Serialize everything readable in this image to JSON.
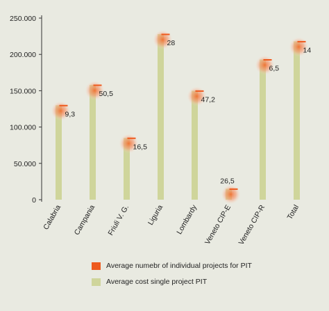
{
  "chart_data": {
    "type": "bar",
    "categories": [
      "Calabria",
      "Campania",
      "Friuli V. G.",
      "Liguria",
      "Lombardy",
      "Veneto CIP-E",
      "Veneto CIP-R",
      "Total"
    ],
    "series": [
      {
        "name": "Average cost single project PIT",
        "values": [
          130000,
          158000,
          85000,
          228000,
          150000,
          15000,
          193000,
          218000
        ]
      },
      {
        "name": "Average numebr of individual projects for PIT",
        "values": [
          9.3,
          50.5,
          16.5,
          28,
          47.2,
          26.5,
          6.5,
          14
        ]
      }
    ],
    "data_labels": [
      "9,3",
      "50,5",
      "16,5",
      "28",
      "47,2",
      "26,5",
      "6,5",
      "14"
    ],
    "y_ticks": [
      "0",
      "50.000",
      "100.000",
      "150.000",
      "200.000",
      "250.000"
    ],
    "ylim": [
      0,
      250000
    ],
    "grid": false,
    "legend_position": "bottom"
  },
  "colors": {
    "bar": "#cfd59b",
    "marker": "#ee5a1e",
    "glow": "#f8b59a",
    "background": "#e9eae1"
  }
}
